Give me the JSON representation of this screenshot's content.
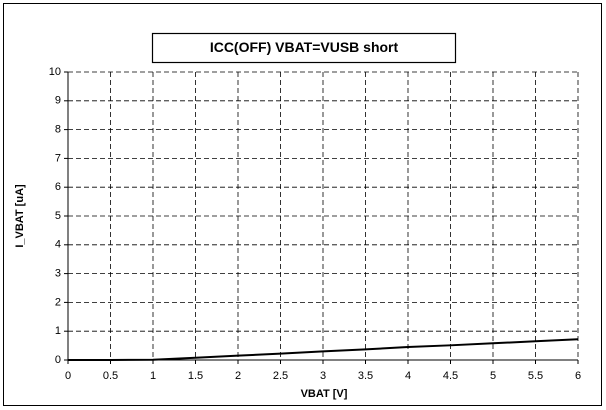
{
  "chart_data": {
    "type": "line",
    "title": "ICC(OFF)  VBAT=VUSB short",
    "xlabel": "VBAT [V]",
    "ylabel": "I_VBAT [uA]",
    "x": [
      0,
      0.5,
      1,
      1.5,
      2,
      2.5,
      3,
      3.5,
      4,
      4.5,
      5,
      5.5,
      6
    ],
    "series": [
      {
        "name": "I_VBAT",
        "color": "#000000",
        "values": [
          0,
          0,
          0.01,
          0.08,
          0.15,
          0.22,
          0.3,
          0.37,
          0.45,
          0.51,
          0.58,
          0.65,
          0.72
        ]
      }
    ],
    "xlim": [
      0,
      6
    ],
    "xticks": [
      0,
      0.5,
      1,
      1.5,
      2,
      2.5,
      3,
      3.5,
      4,
      4.5,
      5,
      5.5,
      6
    ],
    "ylim": [
      0,
      10
    ],
    "yticks": [
      0,
      1,
      2,
      3,
      4,
      5,
      6,
      7,
      8,
      9,
      10
    ],
    "grid": true
  }
}
